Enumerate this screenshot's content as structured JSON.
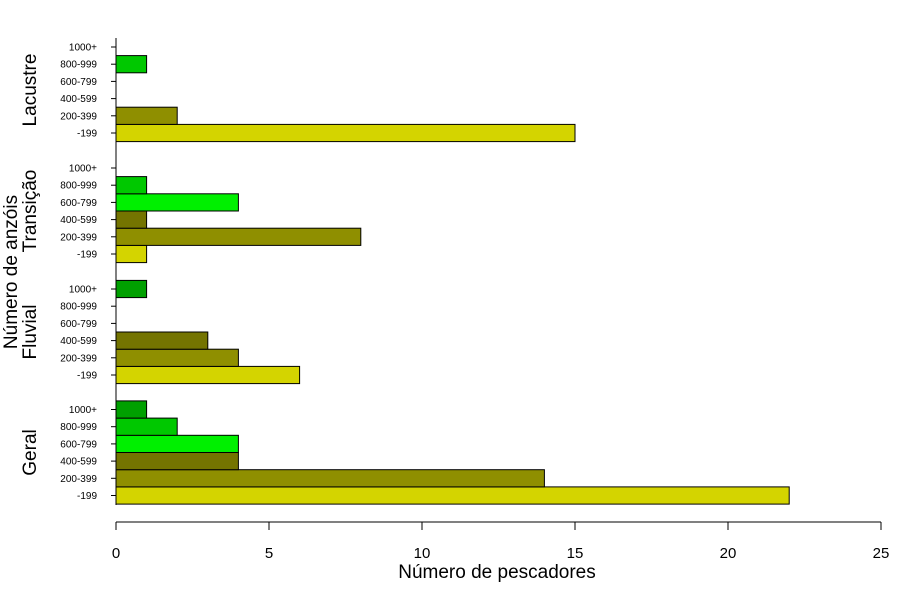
{
  "chart_data": {
    "type": "bar",
    "orientation": "horizontal",
    "xlabel": "Número de pescadores",
    "ylabel": "Número de anzóis",
    "xlim": [
      0,
      25
    ],
    "xticks": [
      0,
      5,
      10,
      15,
      20,
      25
    ],
    "grid": false,
    "categories": [
      "-199",
      "200-399",
      "400-599",
      "600-799",
      "800-999",
      "1000+"
    ],
    "colors": [
      "#d4d400",
      "#8f8f00",
      "#747400",
      "#00f000",
      "#00c800",
      "#00a000"
    ],
    "groups": [
      {
        "name": "Geral",
        "values": [
          22,
          14,
          4,
          4,
          2,
          1
        ]
      },
      {
        "name": "Fluvial",
        "values": [
          6,
          4,
          3,
          0,
          0,
          1
        ]
      },
      {
        "name": "Transição",
        "values": [
          1,
          8,
          1,
          4,
          1,
          0
        ]
      },
      {
        "name": "Lacustre",
        "values": [
          15,
          2,
          0,
          0,
          1,
          0
        ]
      }
    ]
  }
}
